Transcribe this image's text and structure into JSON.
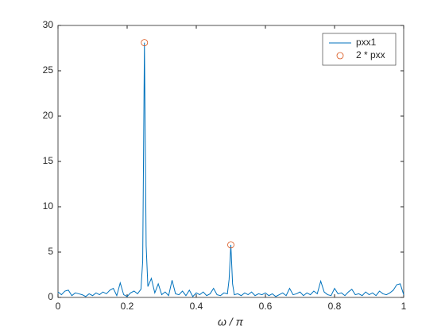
{
  "chart_data": {
    "type": "line",
    "xlabel": "ω / π",
    "xlim": [
      0,
      1
    ],
    "ylim": [
      0,
      30
    ],
    "xticks": [
      0,
      0.2,
      0.4,
      0.6,
      0.8,
      1
    ],
    "yticks": [
      0,
      5,
      10,
      15,
      20,
      25,
      30
    ],
    "grid": false,
    "legend": "northeast",
    "series": [
      {
        "name": "pxx1",
        "type": "line",
        "color": "#0072bd",
        "x": [
          0,
          0.01,
          0.02,
          0.03,
          0.04,
          0.05,
          0.06,
          0.07,
          0.08,
          0.09,
          0.1,
          0.11,
          0.12,
          0.13,
          0.14,
          0.15,
          0.16,
          0.17,
          0.18,
          0.19,
          0.2,
          0.21,
          0.22,
          0.23,
          0.24,
          0.245,
          0.25,
          0.255,
          0.26,
          0.27,
          0.28,
          0.29,
          0.3,
          0.31,
          0.32,
          0.33,
          0.34,
          0.35,
          0.36,
          0.37,
          0.38,
          0.39,
          0.4,
          0.41,
          0.42,
          0.43,
          0.44,
          0.45,
          0.46,
          0.47,
          0.48,
          0.49,
          0.495,
          0.5,
          0.505,
          0.51,
          0.52,
          0.53,
          0.54,
          0.55,
          0.56,
          0.57,
          0.58,
          0.59,
          0.6,
          0.61,
          0.62,
          0.63,
          0.64,
          0.65,
          0.66,
          0.67,
          0.68,
          0.69,
          0.7,
          0.71,
          0.72,
          0.73,
          0.74,
          0.75,
          0.76,
          0.77,
          0.78,
          0.79,
          0.8,
          0.81,
          0.82,
          0.83,
          0.84,
          0.85,
          0.86,
          0.87,
          0.88,
          0.89,
          0.9,
          0.91,
          0.92,
          0.93,
          0.94,
          0.95,
          0.96,
          0.97,
          0.98,
          0.99,
          1
        ],
        "values": [
          0.6,
          0.3,
          0.7,
          0.8,
          0.2,
          0.5,
          0.4,
          0.3,
          0.1,
          0.4,
          0.2,
          0.5,
          0.3,
          0.6,
          0.4,
          0.8,
          1.0,
          0.2,
          1.6,
          0.3,
          0.1,
          0.5,
          0.7,
          0.4,
          0.9,
          4.0,
          28.1,
          5.7,
          1.2,
          2.1,
          0.5,
          1.5,
          0.3,
          0.6,
          0.2,
          1.9,
          0.4,
          0.3,
          0.7,
          0.2,
          0.8,
          0.1,
          0.5,
          0.3,
          0.6,
          0.2,
          0.4,
          1.0,
          0.3,
          0.2,
          0.5,
          0.4,
          2.0,
          5.8,
          1.5,
          0.3,
          0.4,
          0.2,
          0.5,
          0.3,
          0.6,
          0.2,
          0.4,
          0.3,
          0.5,
          0.2,
          0.4,
          0.1,
          0.3,
          0.5,
          0.2,
          1.0,
          0.3,
          0.4,
          0.6,
          0.2,
          0.5,
          0.3,
          0.7,
          0.4,
          1.8,
          0.6,
          0.3,
          0.2,
          1.0,
          0.4,
          0.5,
          0.2,
          0.6,
          0.9,
          0.3,
          0.4,
          0.2,
          0.6,
          0.3,
          0.5,
          0.2,
          0.7,
          0.4,
          0.3,
          0.5,
          0.8,
          1.4,
          1.5,
          0.3
        ]
      },
      {
        "name": "2 * pxx",
        "type": "scatter",
        "color": "#d95319",
        "x": [
          0.25,
          0.5
        ],
        "values": [
          28.1,
          5.8
        ]
      }
    ]
  }
}
